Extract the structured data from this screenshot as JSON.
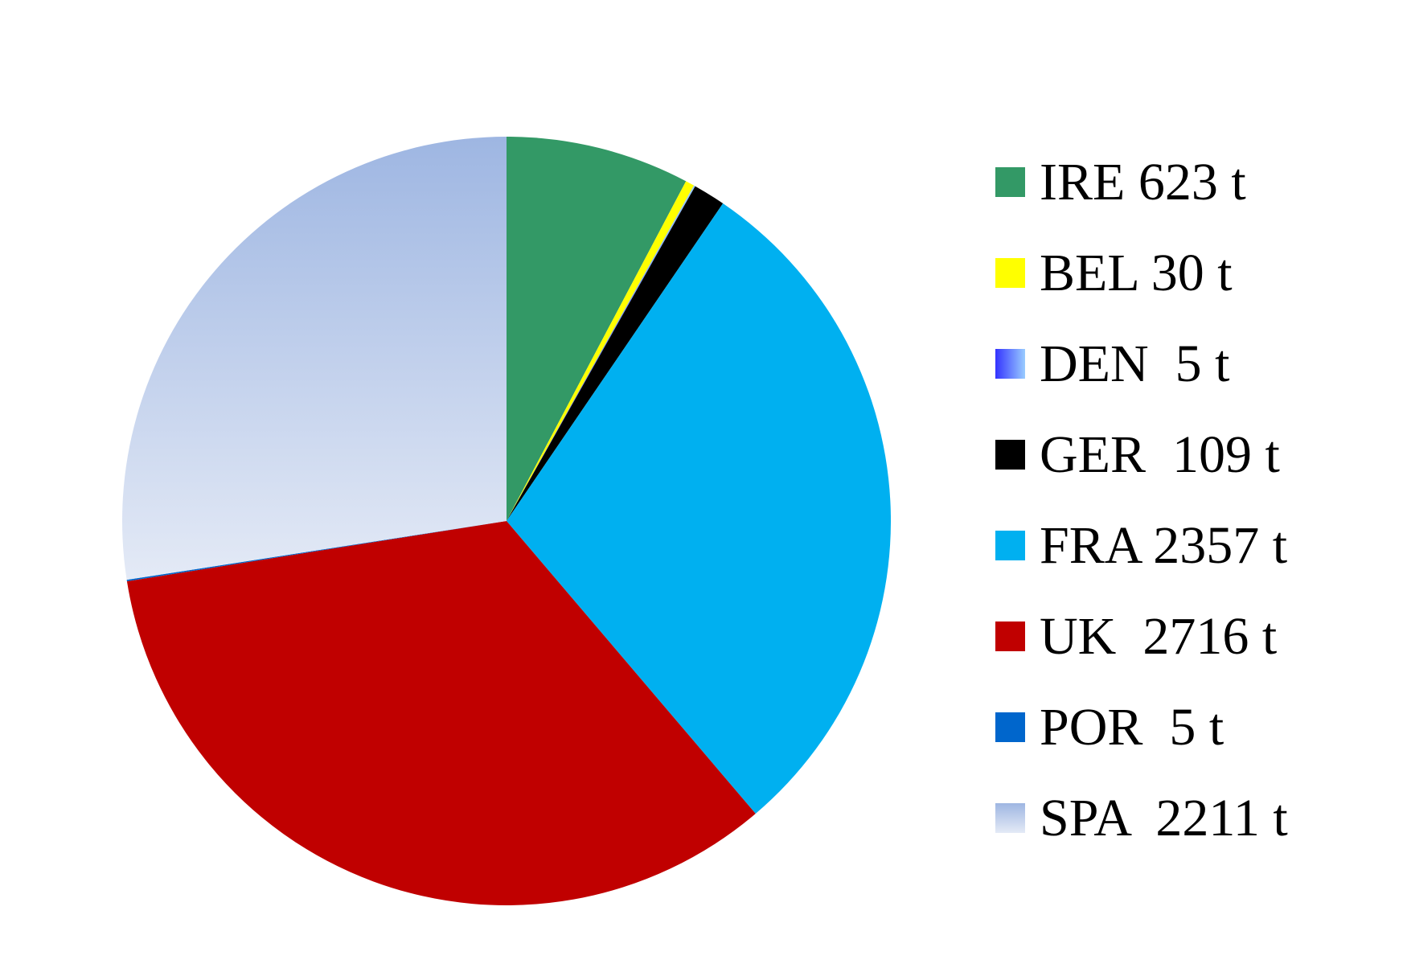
{
  "chart_data": {
    "type": "pie",
    "start_angle": "12 o'clock, clockwise",
    "slices": [
      {
        "label": "IRE 623 t",
        "value": 623,
        "color": "#339966"
      },
      {
        "label": "BEL 30 t",
        "value": 30,
        "color": "#ffff00"
      },
      {
        "label": "DEN  5 t",
        "value": 5,
        "color": "#3333ff",
        "color2": "#99ccff",
        "gradient": "horizontal"
      },
      {
        "label": "GER  109 t",
        "value": 109,
        "color": "#000000"
      },
      {
        "label": "FRA 2357 t",
        "value": 2357,
        "color": "#00b0f0"
      },
      {
        "label": "UK  2716 t",
        "value": 2716,
        "color": "#c00000"
      },
      {
        "label": "POR  5 t",
        "value": 5,
        "color": "#0066cc"
      },
      {
        "label": "SPA  2211 t",
        "value": 2211,
        "color": "#9eb6e2",
        "color2": "#e4eaf6",
        "gradient": "vertical"
      }
    ],
    "legend_position": "right"
  }
}
